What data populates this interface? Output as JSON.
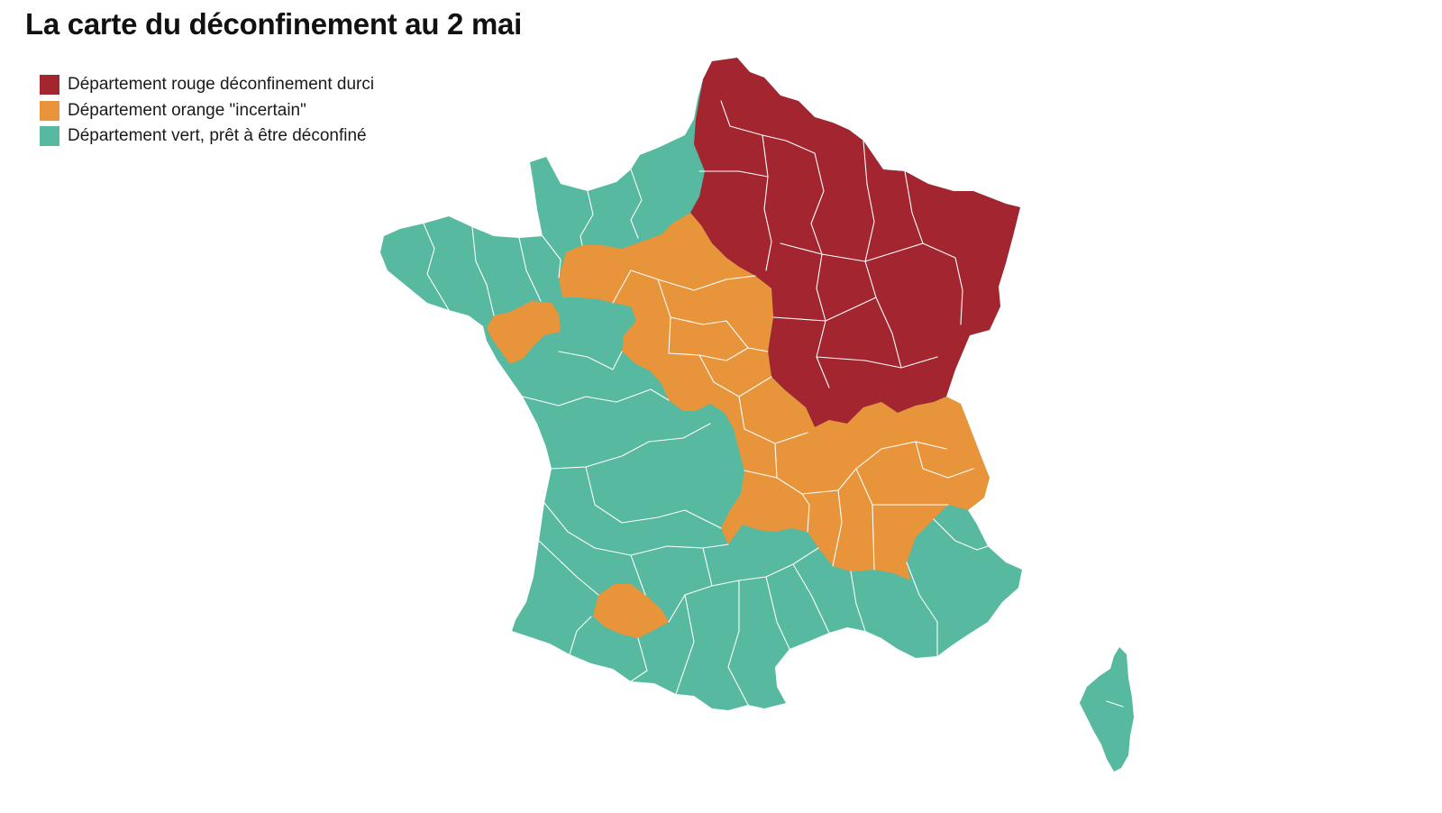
{
  "title": "La carte du déconfinement au 2 mai",
  "legend": {
    "items": [
      {
        "label": "Département rouge déconfinement durci",
        "color": "#a3252f",
        "status": "rouge"
      },
      {
        "label": "Département orange \"incertain\"",
        "color": "#e8943a",
        "status": "orange"
      },
      {
        "label": "Département vert, prêt à être déconfiné",
        "color": "#56b9a0",
        "status": "vert"
      }
    ]
  },
  "map": {
    "country": "France métropolitaine",
    "regions_shown": [
      "Corse"
    ],
    "zones": [
      {
        "status": "rouge",
        "area": "nord-est"
      },
      {
        "status": "orange",
        "area": "centre, Bourgogne, Auvergne-Rhône-Alpes, Loire-Atlantique, Gers"
      },
      {
        "status": "vert",
        "area": "ouest, sud-ouest, sud, Corse"
      }
    ]
  }
}
